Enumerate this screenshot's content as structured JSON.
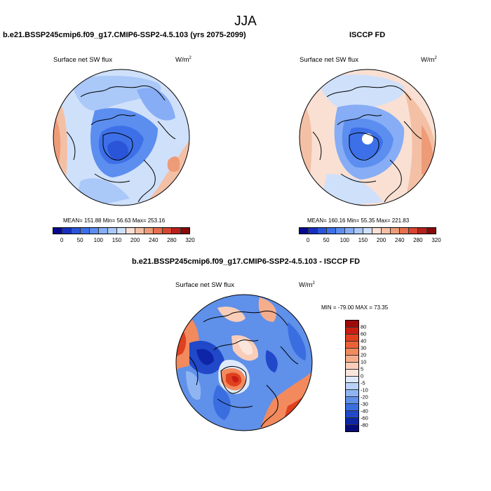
{
  "figure_title": "JJA",
  "panels": [
    {
      "title": "b.e21.BSSP245cmip6.f09_g17.CMIP6-SSP2-4.5.103 (yrs 2075-2099)",
      "variable": "Surface net SW flux",
      "unit": "W/m",
      "unit_exp": "2",
      "stats": "MEAN= 151.88  Min=  56.63  Max= 253.16"
    },
    {
      "title": "ISCCP FD",
      "variable": "Surface net SW flux",
      "unit": "W/m",
      "unit_exp": "2",
      "stats": "MEAN= 160.16  Min=  55.35  Max= 221.83"
    },
    {
      "title": "b.e21.BSSP245cmip6.f09_g17.CMIP6-SSP2-4.5.103 - ISCCP FD",
      "variable": "Surface net SW flux",
      "unit": "W/m",
      "unit_exp": "2",
      "stats": "MIN = -79.00 MAX =  73.35"
    }
  ],
  "colorbar_abs": {
    "ticks": [
      "0",
      "50",
      "100",
      "150",
      "200",
      "240",
      "280",
      "320"
    ],
    "colors": [
      "#08088e",
      "#1530c0",
      "#2a55d8",
      "#3d70e8",
      "#5c8ef0",
      "#86adf5",
      "#aac8f8",
      "#cfe0fb",
      "#f9e0d3",
      "#f4c0a5",
      "#ee9b78",
      "#e8704e",
      "#d84630",
      "#b8201c",
      "#870a0a"
    ]
  },
  "colorbar_diff": {
    "ticks": [
      "80",
      "60",
      "40",
      "30",
      "20",
      "10",
      "5",
      "0",
      "-5",
      "-10",
      "-20",
      "-30",
      "-40",
      "-60",
      "-80"
    ],
    "colors": [
      "#a00a0a",
      "#c81e14",
      "#e0401e",
      "#ec6236",
      "#f28a5e",
      "#f6ad8c",
      "#f9cdb8",
      "#fbe6dc",
      "#deeafb",
      "#b8d2f8",
      "#8eb4f2",
      "#5f90ea",
      "#3a6ee0",
      "#2048c8",
      "#0d25a6",
      "#070b7a"
    ]
  }
}
